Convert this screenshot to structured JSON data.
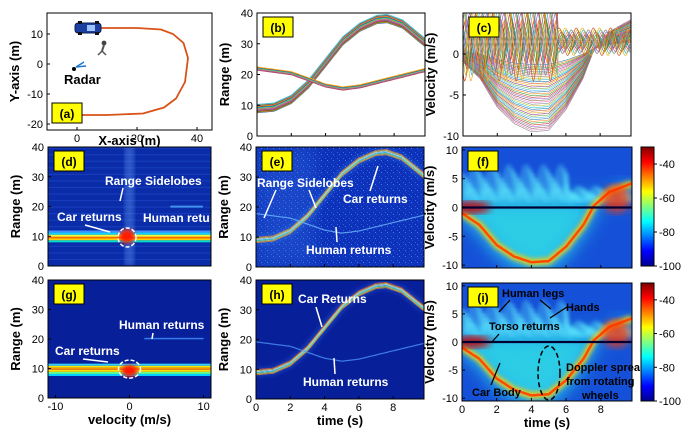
{
  "chart_data": [
    {
      "panel": "(a)",
      "type": "line",
      "xlabel": "X-axis (m)",
      "ylabel": "Y-axis (m)",
      "xlim": [
        -10,
        45
      ],
      "ylim": [
        -22,
        17
      ],
      "xticks": [
        "0",
        "20",
        "40"
      ],
      "yticks": [
        "10",
        "0",
        "-10",
        "-20"
      ],
      "series": [
        {
          "color": "#d95319",
          "x": [
            0,
            20,
            28,
            32,
            35.5,
            37,
            36,
            33,
            29,
            22,
            10,
            0
          ],
          "y": [
            12,
            12,
            11.5,
            10,
            7,
            2,
            -6,
            -11.5,
            -14.5,
            -16.5,
            -17,
            -17
          ]
        }
      ],
      "annotations": [
        {
          "text": "Radar",
          "x": 1,
          "y": -3
        }
      ]
    },
    {
      "panel": "(b)",
      "type": "line",
      "xlabel": "",
      "ylabel": "Range (m)",
      "xlim": [
        0,
        9.8
      ],
      "ylim": [
        0,
        40
      ],
      "xticks": [],
      "yticks": [
        "40",
        "30",
        "20",
        "10",
        "0"
      ],
      "car_range": {
        "t": [
          0,
          1,
          2,
          3,
          4,
          5,
          6,
          7,
          7.6,
          8.5,
          9.8
        ],
        "r": [
          9,
          9.5,
          12,
          17,
          24,
          31,
          35.5,
          38,
          38.3,
          36.5,
          30.5
        ]
      },
      "human_range": {
        "t": [
          0,
          2,
          4,
          5,
          6,
          8,
          9.8
        ],
        "r": [
          22,
          20.5,
          16.5,
          15.5,
          16.2,
          19,
          21.5
        ]
      }
    },
    {
      "panel": "(c)",
      "type": "line",
      "xlabel": "",
      "ylabel": "Velocity (m/s)",
      "xlim": [
        0,
        9.8
      ],
      "ylim": [
        -10,
        5
      ],
      "xticks": [],
      "yticks": [
        "0",
        "-5",
        "-10"
      ],
      "car_velocity": {
        "t": [
          0,
          1,
          2,
          3,
          4,
          5,
          6,
          7,
          7.6,
          8.5,
          9.8
        ],
        "v": [
          -1,
          -3,
          -6.5,
          -8.5,
          -9.5,
          -9.3,
          -6.8,
          -3,
          0.3,
          2.7,
          4.2
        ]
      }
    },
    {
      "panel": "(d)",
      "type": "heatmap",
      "xlabel": "",
      "ylabel": "Range (m)",
      "xlim": [
        -10,
        10
      ],
      "ylim": [
        0,
        40
      ],
      "xticks": [],
      "yticks": [
        "40",
        "30",
        "20",
        "10",
        "0"
      ],
      "annotations": [
        "Range Sidelobes",
        "Car returns",
        "Human returns"
      ]
    },
    {
      "panel": "(e)",
      "type": "heatmap",
      "xlabel": "",
      "ylabel": "Range (m)",
      "xlim": [
        0,
        9.8
      ],
      "ylim": [
        0,
        40
      ],
      "xticks": [],
      "yticks": [
        "40",
        "30",
        "20",
        "10",
        "0"
      ],
      "annotations": [
        "Range Sidelobes",
        "Car returns",
        "Human returns"
      ]
    },
    {
      "panel": "(f)",
      "type": "heatmap",
      "xlabel": "",
      "ylabel": "Velocity (m/s)",
      "xlim": [
        0,
        9.8
      ],
      "ylim": [
        -10.5,
        10.5
      ],
      "xticks": [],
      "yticks": [
        "10",
        "5",
        "0",
        "-5",
        "-10"
      ],
      "colorbar": {
        "range": [
          -100,
          -30
        ],
        "ticks": [
          "-40",
          "-60",
          "-80",
          "-100"
        ]
      }
    },
    {
      "panel": "(g)",
      "type": "heatmap",
      "xlabel": "velocity (m/s)",
      "ylabel": "Range (m)",
      "xlim": [
        -11,
        11
      ],
      "ylim": [
        0,
        40
      ],
      "xticks": [
        "-10",
        "0",
        "10"
      ],
      "yticks": [
        "40",
        "30",
        "20",
        "10",
        "0"
      ],
      "annotations": [
        "Human returns",
        "Car returns"
      ]
    },
    {
      "panel": "(h)",
      "type": "heatmap",
      "xlabel": "time (s)",
      "ylabel": "Range (m)",
      "xlim": [
        0,
        9.8
      ],
      "ylim": [
        0,
        40
      ],
      "xticks": [
        "0",
        "2",
        "4",
        "6",
        "8"
      ],
      "yticks": [
        "40",
        "30",
        "20",
        "10",
        "0"
      ],
      "annotations": [
        "Car Returns",
        "Human returns"
      ]
    },
    {
      "panel": "(i)",
      "type": "heatmap",
      "xlabel": "time (s)",
      "ylabel": "Velocity (m/s)",
      "xlim": [
        0,
        9.8
      ],
      "ylim": [
        -10.5,
        10.5
      ],
      "xticks": [
        "0",
        "2",
        "4",
        "6",
        "8"
      ],
      "yticks": [
        "10",
        "5",
        "0",
        "-5",
        "-10"
      ],
      "colorbar": {
        "range": [
          -100,
          -30
        ],
        "ticks": [
          "-40",
          "-60",
          "-80",
          "-100"
        ]
      },
      "annotations": [
        "Human legs",
        "Hands",
        "Torso returns",
        "Car Body",
        "Doppler spread",
        "from  rotating",
        "wheels"
      ]
    }
  ],
  "colors": {
    "panel_label_bg": "#ffff00",
    "heat_background": "#0b2ca8",
    "car_track": "#d95319"
  }
}
